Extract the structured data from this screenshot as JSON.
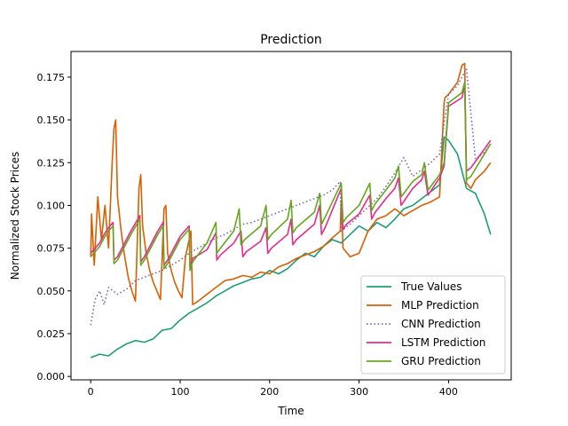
{
  "chart_data": {
    "type": "line",
    "title": "Prediction",
    "xlabel": "Time",
    "ylabel": "Normalized Stock Prices",
    "xlim": [
      -22,
      470
    ],
    "ylim": [
      -0.002,
      0.19
    ],
    "xticks": [
      0,
      100,
      200,
      300,
      400
    ],
    "xtick_labels": [
      "0",
      "100",
      "200",
      "300",
      "400"
    ],
    "yticks": [
      0.0,
      0.025,
      0.05,
      0.075,
      0.1,
      0.125,
      0.15,
      0.175
    ],
    "ytick_labels": [
      "0.000",
      "0.025",
      "0.050",
      "0.075",
      "0.100",
      "0.125",
      "0.150",
      "0.175"
    ],
    "grid": false,
    "legend_position": "bottom-right",
    "series": [
      {
        "name": "True Values",
        "color": "#1b9e77",
        "dash": "solid",
        "x": [
          0,
          10,
          20,
          30,
          40,
          50,
          60,
          70,
          80,
          90,
          100,
          110,
          120,
          130,
          140,
          150,
          160,
          170,
          180,
          190,
          200,
          210,
          220,
          230,
          240,
          250,
          260,
          270,
          280,
          290,
          300,
          310,
          320,
          330,
          340,
          350,
          360,
          370,
          380,
          390,
          395,
          400,
          410,
          420,
          430,
          440,
          447
        ],
        "y": [
          0.011,
          0.013,
          0.012,
          0.016,
          0.019,
          0.021,
          0.02,
          0.022,
          0.027,
          0.028,
          0.033,
          0.037,
          0.04,
          0.043,
          0.047,
          0.05,
          0.053,
          0.055,
          0.057,
          0.058,
          0.062,
          0.06,
          0.063,
          0.068,
          0.072,
          0.07,
          0.076,
          0.08,
          0.078,
          0.083,
          0.088,
          0.085,
          0.09,
          0.087,
          0.092,
          0.098,
          0.1,
          0.104,
          0.108,
          0.112,
          0.14,
          0.138,
          0.13,
          0.11,
          0.107,
          0.095,
          0.083
        ]
      },
      {
        "name": "MLP Prediction",
        "color": "#d95f02",
        "dash": "solid",
        "x": [
          0,
          1,
          4,
          8,
          12,
          16,
          20,
          24,
          26,
          28,
          30,
          34,
          38,
          42,
          46,
          50,
          54,
          56,
          58,
          62,
          66,
          70,
          74,
          78,
          82,
          84,
          86,
          90,
          94,
          98,
          102,
          106,
          110,
          112,
          114,
          120,
          130,
          140,
          150,
          160,
          170,
          180,
          190,
          200,
          210,
          220,
          230,
          240,
          250,
          260,
          270,
          279,
          280,
          282,
          290,
          300,
          310,
          320,
          330,
          340,
          350,
          360,
          370,
          380,
          390,
          395,
          396,
          400,
          410,
          415,
          418,
          420,
          425,
          430,
          440,
          447
        ],
        "y": [
          0.07,
          0.095,
          0.065,
          0.105,
          0.08,
          0.1,
          0.075,
          0.125,
          0.145,
          0.15,
          0.105,
          0.085,
          0.07,
          0.058,
          0.05,
          0.044,
          0.11,
          0.118,
          0.088,
          0.072,
          0.062,
          0.055,
          0.05,
          0.045,
          0.098,
          0.1,
          0.072,
          0.062,
          0.055,
          0.05,
          0.046,
          0.07,
          0.08,
          0.085,
          0.042,
          0.044,
          0.048,
          0.052,
          0.056,
          0.057,
          0.059,
          0.058,
          0.061,
          0.06,
          0.064,
          0.066,
          0.069,
          0.071,
          0.073,
          0.076,
          0.081,
          0.085,
          0.103,
          0.075,
          0.07,
          0.072,
          0.085,
          0.092,
          0.094,
          0.098,
          0.094,
          0.097,
          0.1,
          0.102,
          0.105,
          0.16,
          0.163,
          0.165,
          0.172,
          0.182,
          0.183,
          0.113,
          0.11,
          0.115,
          0.12,
          0.125
        ]
      },
      {
        "name": "CNN Prediction",
        "color": "#7570b3",
        "dash": "dotted",
        "x": [
          0,
          5,
          10,
          15,
          20,
          25,
          30,
          40,
          50,
          60,
          70,
          80,
          90,
          100,
          110,
          120,
          130,
          140,
          150,
          160,
          170,
          180,
          190,
          200,
          210,
          220,
          230,
          240,
          250,
          260,
          270,
          279,
          280,
          290,
          300,
          310,
          320,
          330,
          340,
          350,
          360,
          370,
          380,
          390,
          400,
          410,
          420,
          430,
          440,
          447
        ],
        "y": [
          0.03,
          0.045,
          0.05,
          0.042,
          0.052,
          0.05,
          0.048,
          0.051,
          0.056,
          0.058,
          0.06,
          0.062,
          0.065,
          0.068,
          0.072,
          0.075,
          0.078,
          0.081,
          0.083,
          0.086,
          0.089,
          0.09,
          0.092,
          0.094,
          0.096,
          0.098,
          0.1,
          0.102,
          0.104,
          0.106,
          0.109,
          0.114,
          0.085,
          0.089,
          0.094,
          0.099,
          0.104,
          0.111,
          0.119,
          0.128,
          0.117,
          0.121,
          0.125,
          0.13,
          0.165,
          0.17,
          0.18,
          0.127,
          0.131,
          0.136
        ]
      },
      {
        "name": "LSTM Prediction",
        "color": "#e7298a",
        "dash": "solid",
        "x": [
          0,
          5,
          10,
          15,
          20,
          25,
          26,
          30,
          45,
          55,
          56,
          60,
          75,
          81,
          82,
          86,
          100,
          110,
          111,
          114,
          130,
          140,
          141,
          145,
          160,
          168,
          170,
          174,
          190,
          196,
          198,
          202,
          220,
          224,
          226,
          230,
          250,
          256,
          258,
          262,
          280,
          282,
          286,
          300,
          312,
          314,
          318,
          330,
          340,
          344,
          347,
          360,
          370,
          373,
          377,
          390,
          395,
          400,
          415,
          418,
          420,
          425,
          447
        ],
        "y": [
          0.072,
          0.075,
          0.078,
          0.083,
          0.087,
          0.09,
          0.068,
          0.07,
          0.085,
          0.094,
          0.067,
          0.07,
          0.085,
          0.09,
          0.065,
          0.068,
          0.082,
          0.088,
          0.064,
          0.069,
          0.074,
          0.084,
          0.068,
          0.071,
          0.078,
          0.085,
          0.07,
          0.073,
          0.079,
          0.087,
          0.072,
          0.075,
          0.083,
          0.092,
          0.077,
          0.08,
          0.089,
          0.1,
          0.083,
          0.087,
          0.11,
          0.086,
          0.089,
          0.095,
          0.106,
          0.092,
          0.096,
          0.104,
          0.11,
          0.116,
          0.1,
          0.11,
          0.115,
          0.12,
          0.106,
          0.116,
          0.123,
          0.158,
          0.163,
          0.17,
          0.12,
          0.122,
          0.138
        ]
      },
      {
        "name": "GRU Prediction",
        "color": "#66a61e",
        "dash": "solid",
        "x": [
          0,
          5,
          10,
          15,
          20,
          25,
          26,
          30,
          45,
          55,
          56,
          60,
          75,
          81,
          82,
          86,
          100,
          110,
          111,
          114,
          130,
          140,
          141,
          145,
          160,
          166,
          168,
          172,
          190,
          196,
          198,
          202,
          220,
          224,
          226,
          230,
          250,
          256,
          258,
          262,
          280,
          282,
          286,
          300,
          312,
          314,
          318,
          330,
          340,
          344,
          347,
          360,
          370,
          373,
          377,
          390,
          395,
          400,
          415,
          418,
          420,
          425,
          447
        ],
        "y": [
          0.07,
          0.073,
          0.076,
          0.081,
          0.085,
          0.088,
          0.066,
          0.068,
          0.083,
          0.092,
          0.065,
          0.068,
          0.083,
          0.088,
          0.063,
          0.066,
          0.08,
          0.086,
          0.062,
          0.067,
          0.078,
          0.09,
          0.072,
          0.075,
          0.085,
          0.098,
          0.077,
          0.08,
          0.088,
          0.1,
          0.08,
          0.083,
          0.092,
          0.103,
          0.084,
          0.087,
          0.096,
          0.107,
          0.089,
          0.093,
          0.113,
          0.09,
          0.093,
          0.1,
          0.113,
          0.097,
          0.101,
          0.109,
          0.116,
          0.123,
          0.105,
          0.114,
          0.118,
          0.125,
          0.109,
          0.118,
          0.125,
          0.16,
          0.166,
          0.172,
          0.115,
          0.117,
          0.136
        ]
      }
    ]
  }
}
